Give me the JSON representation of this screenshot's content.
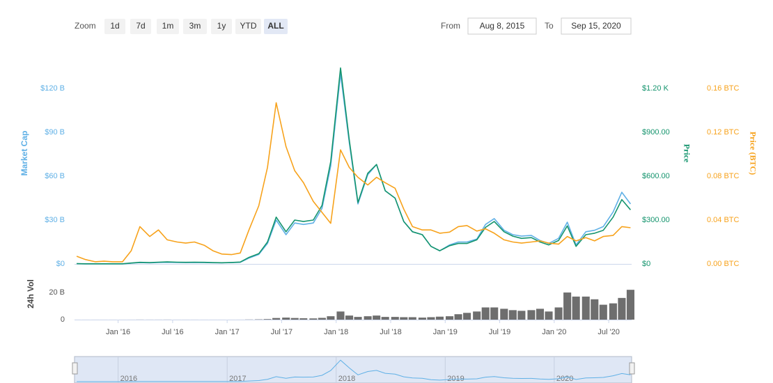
{
  "toolbar": {
    "zoom_label": "Zoom",
    "buttons": [
      "1d",
      "7d",
      "1m",
      "3m",
      "1y",
      "YTD",
      "ALL"
    ],
    "selected": 6,
    "from_label": "From",
    "from": "Aug 8, 2015",
    "to_label": "To",
    "to": "Sep 15, 2020"
  },
  "chart_data": [
    {
      "type": "line",
      "x": [
        2015.62,
        2015.7,
        2015.79,
        2015.87,
        2015.95,
        2016.04,
        2016.12,
        2016.2,
        2016.29,
        2016.37,
        2016.45,
        2016.54,
        2016.62,
        2016.7,
        2016.79,
        2016.87,
        2016.95,
        2017.04,
        2017.12,
        2017.2,
        2017.29,
        2017.37,
        2017.45,
        2017.54,
        2017.62,
        2017.7,
        2017.79,
        2017.87,
        2017.95,
        2018.04,
        2018.12,
        2018.2,
        2018.29,
        2018.37,
        2018.45,
        2018.54,
        2018.62,
        2018.7,
        2018.79,
        2018.87,
        2018.95,
        2019.04,
        2019.12,
        2019.2,
        2019.29,
        2019.37,
        2019.45,
        2019.54,
        2019.62,
        2019.7,
        2019.79,
        2019.87,
        2019.95,
        2020.04,
        2020.12,
        2020.2,
        2020.29,
        2020.37,
        2020.45,
        2020.54,
        2020.62,
        2020.7
      ],
      "xlim": [
        2015.6,
        2020.71
      ],
      "ylabel": "Market Cap",
      "ylim": [
        0,
        135
      ],
      "yticks": [
        {
          "value": 0,
          "label": "$0"
        },
        {
          "value": 30,
          "label": "$30 B"
        },
        {
          "value": 60,
          "label": "$60 B"
        },
        {
          "value": 90,
          "label": "$90 B"
        },
        {
          "value": 120,
          "label": "$120 B"
        }
      ],
      "y2label": "Price",
      "y2lim": [
        0,
        1350
      ],
      "y2ticks": [
        {
          "value": 0,
          "label": "$0"
        },
        {
          "value": 300,
          "label": "$300.00"
        },
        {
          "value": 600,
          "label": "$600.00"
        },
        {
          "value": 900,
          "label": "$900.00"
        },
        {
          "value": 1200,
          "label": "$1.20 K"
        }
      ],
      "y3label": "Price (BTC)",
      "y3lim": [
        0,
        0.18
      ],
      "y3ticks": [
        {
          "value": 0,
          "label": "0.00 BTC"
        },
        {
          "value": 0.04,
          "label": "0.04 BTC"
        },
        {
          "value": 0.08,
          "label": "0.08 BTC"
        },
        {
          "value": 0.12,
          "label": "0.12 BTC"
        },
        {
          "value": 0.16,
          "label": "0.16 BTC"
        }
      ],
      "grid": false,
      "series": [
        {
          "name": "Market Cap",
          "color": "#5fb0e6",
          "axis": "y",
          "values": [
            0.15,
            0.07,
            0.07,
            0.07,
            0.07,
            0.07,
            0.5,
            0.9,
            0.7,
            1.0,
            1.1,
            1.0,
            0.9,
            1.0,
            0.9,
            0.8,
            0.7,
            0.9,
            1.1,
            4,
            6.5,
            14,
            30,
            20,
            28,
            27,
            28,
            38,
            67,
            130,
            83,
            41,
            61,
            68,
            50,
            45,
            29,
            22,
            20,
            12,
            9,
            13,
            15,
            15,
            17,
            27,
            31,
            23,
            20,
            19,
            19.5,
            16,
            14,
            17.5,
            28.5,
            13,
            22,
            23,
            25.5,
            35.5,
            49,
            41
          ]
        },
        {
          "name": "Price",
          "color": "#14946d",
          "axis": "y2",
          "values": [
            2,
            1,
            1,
            1,
            1,
            1,
            6,
            11,
            9,
            12,
            14,
            12,
            11,
            12,
            11,
            9,
            8,
            10,
            13,
            45,
            70,
            150,
            320,
            220,
            300,
            290,
            300,
            400,
            700,
            1340,
            850,
            420,
            620,
            680,
            500,
            450,
            290,
            220,
            200,
            120,
            90,
            125,
            140,
            140,
            165,
            250,
            290,
            220,
            190,
            175,
            180,
            150,
            130,
            160,
            260,
            120,
            200,
            210,
            230,
            320,
            440,
            370
          ]
        },
        {
          "name": "Price (BTC)",
          "color": "#f7a21b",
          "axis": "y3",
          "values": [
            0.007,
            0.004,
            0.002,
            0.0025,
            0.002,
            0.002,
            0.012,
            0.034,
            0.025,
            0.031,
            0.022,
            0.02,
            0.019,
            0.02,
            0.017,
            0.012,
            0.009,
            0.0085,
            0.01,
            0.031,
            0.053,
            0.088,
            0.147,
            0.107,
            0.085,
            0.074,
            0.057,
            0.047,
            0.037,
            0.104,
            0.088,
            0.079,
            0.072,
            0.079,
            0.074,
            0.069,
            0.05,
            0.034,
            0.031,
            0.031,
            0.028,
            0.029,
            0.034,
            0.035,
            0.03,
            0.032,
            0.028,
            0.022,
            0.02,
            0.019,
            0.02,
            0.021,
            0.019,
            0.018,
            0.025,
            0.021,
            0.024,
            0.021,
            0.025,
            0.026,
            0.034,
            0.033
          ]
        }
      ]
    },
    {
      "type": "bar",
      "x": [
        2015.62,
        2015.7,
        2015.79,
        2015.87,
        2015.95,
        2016.04,
        2016.12,
        2016.2,
        2016.29,
        2016.37,
        2016.45,
        2016.54,
        2016.62,
        2016.7,
        2016.79,
        2016.87,
        2016.95,
        2017.04,
        2017.12,
        2017.2,
        2017.29,
        2017.37,
        2017.45,
        2017.54,
        2017.62,
        2017.7,
        2017.79,
        2017.87,
        2017.95,
        2018.04,
        2018.12,
        2018.2,
        2018.29,
        2018.37,
        2018.45,
        2018.54,
        2018.62,
        2018.7,
        2018.79,
        2018.87,
        2018.95,
        2019.04,
        2019.12,
        2019.2,
        2019.29,
        2019.37,
        2019.45,
        2019.54,
        2019.62,
        2019.7,
        2019.79,
        2019.87,
        2019.95,
        2020.04,
        2020.12,
        2020.2,
        2020.29,
        2020.37,
        2020.45,
        2020.54,
        2020.62,
        2020.7
      ],
      "xlim": [
        2015.6,
        2020.71
      ],
      "xticks": [
        {
          "value": 2016,
          "label": "Jan '16"
        },
        {
          "value": 2016.5,
          "label": "Jul '16"
        },
        {
          "value": 2017,
          "label": "Jan '17"
        },
        {
          "value": 2017.5,
          "label": "Jul '17"
        },
        {
          "value": 2018,
          "label": "Jan '18"
        },
        {
          "value": 2018.5,
          "label": "Jul '18"
        },
        {
          "value": 2019,
          "label": "Jan '19"
        },
        {
          "value": 2019.5,
          "label": "Jul '19"
        },
        {
          "value": 2020,
          "label": "Jan '20"
        },
        {
          "value": 2020.5,
          "label": "Jul '20"
        }
      ],
      "ylabel": "24h Vol",
      "ylim": [
        0,
        38
      ],
      "yticks": [
        0,
        {
          "value": 20,
          "label": "20 B"
        }
      ],
      "color": "#6e6e6e",
      "values": [
        0.01,
        0.01,
        0.01,
        0.01,
        0.01,
        0.01,
        0.02,
        0.05,
        0.03,
        0.03,
        0.05,
        0.02,
        0.02,
        0.02,
        0.01,
        0.01,
        0.01,
        0.01,
        0.02,
        0.1,
        0.2,
        0.4,
        1.2,
        1.5,
        1.2,
        1.0,
        0.9,
        1.3,
        2.5,
        6,
        3,
        2,
        2.5,
        3,
        2,
        2,
        1.8,
        1.8,
        1.5,
        1.8,
        2.2,
        2.5,
        4,
        5,
        6,
        9,
        9,
        8,
        7,
        6.5,
        7,
        8,
        6,
        9,
        20,
        17,
        17,
        15,
        11,
        12,
        16,
        22
      ]
    }
  ],
  "navigator": {
    "xticks": [
      {
        "value": 2016,
        "label": "2016"
      },
      {
        "value": 2017,
        "label": "2017"
      },
      {
        "value": 2018,
        "label": "2018"
      },
      {
        "value": 2019,
        "label": "2019"
      },
      {
        "value": 2020,
        "label": "2020"
      }
    ]
  }
}
